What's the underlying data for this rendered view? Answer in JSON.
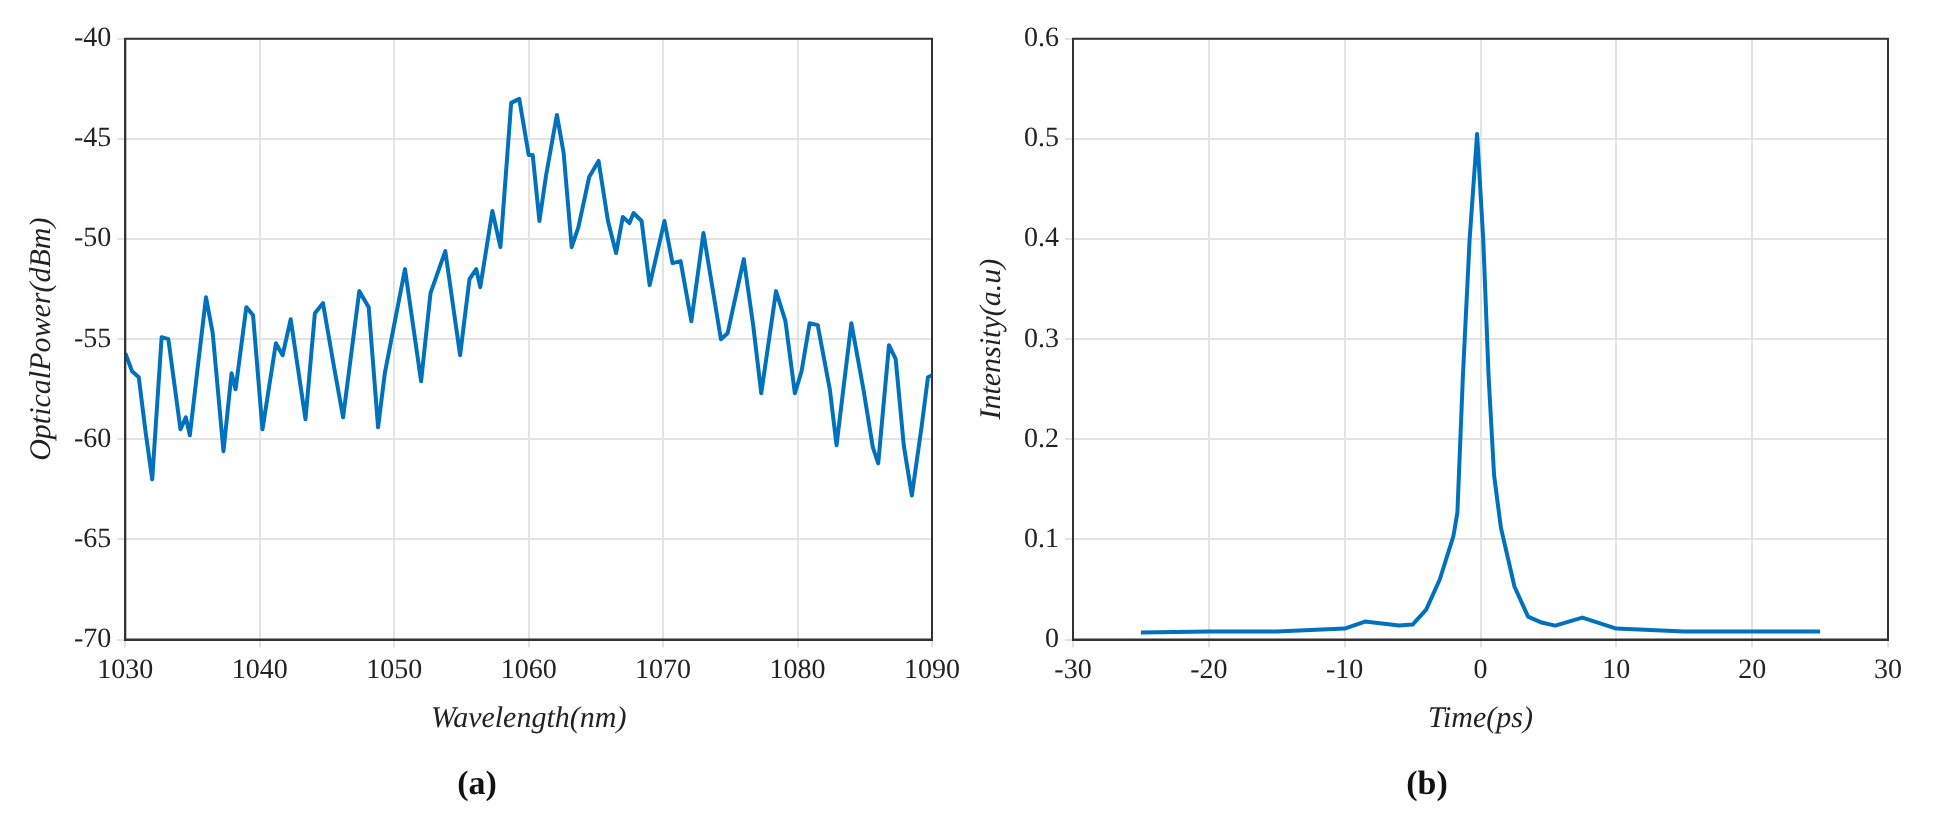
{
  "chart_data": [
    {
      "type": "line",
      "title": "(a)",
      "xlabel": "Wavelength(nm)",
      "ylabel": "OpticalPower(dBm)",
      "xlim": [
        1030,
        1090
      ],
      "xticks": [
        1030,
        1040,
        1050,
        1060,
        1070,
        1080,
        1090
      ],
      "ylim": [
        -70,
        -40
      ],
      "yticks": [
        -70,
        -65,
        -60,
        -55,
        -50,
        -45,
        -40
      ],
      "grid": true,
      "marker": "none",
      "line_style": "solid",
      "series": [
        {
          "color": "#0072bd",
          "x": [
            1030.0,
            1030.5,
            1031.0,
            1031.5,
            1032.0,
            1032.7,
            1033.2,
            1034.1,
            1034.5,
            1034.8,
            1035.3,
            1036.0,
            1036.5,
            1037.3,
            1037.9,
            1038.2,
            1039.0,
            1039.5,
            1040.2,
            1041.2,
            1041.7,
            1042.3,
            1043.4,
            1044.1,
            1044.7,
            1045.5,
            1046.2,
            1047.4,
            1048.1,
            1048.8,
            1049.3,
            1050.8,
            1052.0,
            1052.7,
            1053.8,
            1054.9,
            1055.6,
            1056.1,
            1056.4,
            1057.3,
            1057.9,
            1058.7,
            1059.3,
            1060.0,
            1060.3,
            1060.8,
            1061.3,
            1062.1,
            1062.6,
            1063.2,
            1063.7,
            1064.5,
            1065.2,
            1065.9,
            1066.5,
            1067.0,
            1067.5,
            1067.8,
            1068.4,
            1069.0,
            1070.1,
            1070.7,
            1071.3,
            1072.1,
            1073.0,
            1074.3,
            1074.8,
            1076.0,
            1076.7,
            1077.3,
            1078.4,
            1079.1,
            1079.8,
            1080.3,
            1080.9,
            1081.5,
            1082.4,
            1082.9,
            1084.0,
            1084.9,
            1085.6,
            1086.0,
            1086.8,
            1087.3,
            1087.9,
            1088.5,
            1089.2,
            1089.7,
            1090.0
          ],
          "values": [
            -55.7,
            -56.6,
            -56.9,
            -59.6,
            -62.0,
            -54.9,
            -55.0,
            -59.5,
            -58.9,
            -59.8,
            -56.9,
            -52.9,
            -54.7,
            -60.6,
            -56.7,
            -57.5,
            -53.4,
            -53.8,
            -59.5,
            -55.2,
            -55.8,
            -54.0,
            -59.0,
            -53.7,
            -53.2,
            -56.3,
            -58.9,
            -52.6,
            -53.4,
            -59.4,
            -56.7,
            -51.5,
            -57.1,
            -52.7,
            -50.6,
            -55.8,
            -52.0,
            -51.5,
            -52.4,
            -48.6,
            -50.4,
            -43.2,
            -43.0,
            -45.8,
            -45.8,
            -49.1,
            -46.8,
            -43.8,
            -45.7,
            -50.4,
            -49.4,
            -46.9,
            -46.1,
            -49.1,
            -50.7,
            -48.9,
            -49.2,
            -48.7,
            -49.1,
            -52.3,
            -49.1,
            -51.2,
            -51.1,
            -54.1,
            -49.7,
            -55.0,
            -54.7,
            -51.0,
            -54.3,
            -57.7,
            -52.6,
            -54.1,
            -57.7,
            -56.6,
            -54.2,
            -54.3,
            -57.5,
            -60.3,
            -54.2,
            -57.5,
            -60.4,
            -61.2,
            -55.3,
            -56.0,
            -60.3,
            -62.8,
            -59.5,
            -56.9,
            -56.8
          ]
        }
      ]
    },
    {
      "type": "line",
      "title": "(b)",
      "xlabel": "Time(ps)",
      "ylabel": "Intensity(a.u)",
      "xlim": [
        -30,
        30
      ],
      "xticks": [
        -30,
        -20,
        -10,
        0,
        10,
        20,
        30
      ],
      "ylim": [
        0,
        0.6
      ],
      "yticks": [
        0,
        0.1,
        0.2,
        0.3,
        0.4,
        0.5,
        0.6
      ],
      "grid": true,
      "marker": "none",
      "line_style": "solid",
      "series": [
        {
          "color": "#0072bd",
          "x": [
            -25,
            -20,
            -15,
            -10,
            -8.5,
            -6,
            -5,
            -4,
            -3,
            -2,
            -1.7,
            -1.3,
            -0.8,
            -0.25,
            0.2,
            0.6,
            1.0,
            1.5,
            2.5,
            3.5,
            4.5,
            5.5,
            7.5,
            10,
            15,
            20,
            25
          ],
          "values": [
            0.007,
            0.008,
            0.008,
            0.011,
            0.018,
            0.014,
            0.015,
            0.03,
            0.06,
            0.103,
            0.127,
            0.262,
            0.4,
            0.505,
            0.4,
            0.262,
            0.164,
            0.112,
            0.053,
            0.023,
            0.017,
            0.014,
            0.022,
            0.011,
            0.008,
            0.008,
            0.008
          ]
        }
      ]
    }
  ]
}
